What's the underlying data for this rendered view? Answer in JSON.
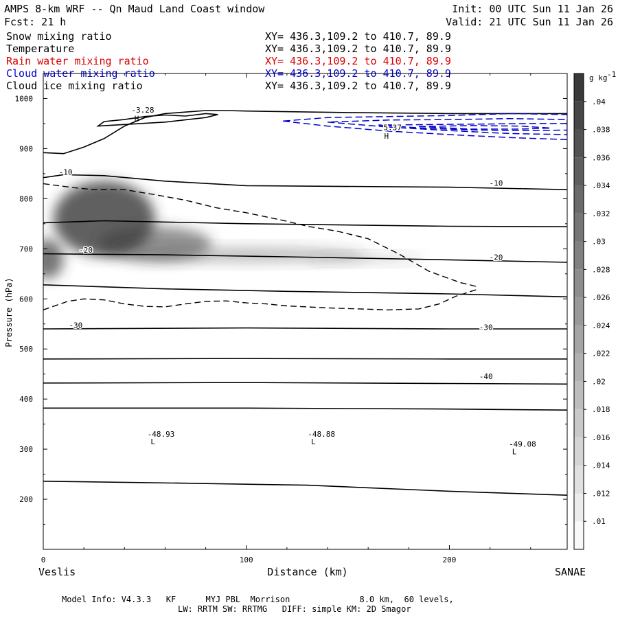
{
  "header": {
    "title": "AMPS 8-km WRF -- Qn Maud Land Coast window",
    "forecast": "Fcst:   21 h",
    "init": "Init: 00 UTC Sun 11 Jan 26",
    "valid": "Valid: 21 UTC Sun 11 Jan 26"
  },
  "fields": [
    {
      "name": "Snow mixing ratio",
      "xy": "XY= 436.3,109.2 to 410.7, 89.9",
      "color": "#000000"
    },
    {
      "name": "Temperature",
      "xy": "XY= 436.3,109.2 to 410.7, 89.9",
      "color": "#000000"
    },
    {
      "name": "Rain water mixing ratio",
      "xy": "XY= 436.3,109.2 to 410.7, 89.9",
      "color": "#dd0000"
    },
    {
      "name": "Cloud water mixing ratio",
      "xy": "XY= 436.3,109.2 to 410.7, 89.9",
      "color": "#0000cc"
    },
    {
      "name": "Cloud ice mixing ratio",
      "xy": "XY= 436.3,109.2 to 410.7, 89.9",
      "color": "#000000"
    }
  ],
  "footer": {
    "line1": "Model Info: V4.3.3   KF      MYJ PBL  Morrison              8.0 km,  60 levels,",
    "line2": "LW: RRTM SW: RRTMG   DIFF: simple KM: 2D Smagor"
  },
  "chart_data": {
    "type": "contour",
    "xlabel": "Distance (km)",
    "ylabel": "Pressure (hPa)",
    "xlim": [
      0,
      258
    ],
    "ylim": [
      1050,
      100
    ],
    "x_ticks": [
      0,
      100,
      200
    ],
    "y_ticks": [
      200,
      300,
      400,
      500,
      600,
      700,
      800,
      900,
      1000
    ],
    "endpoints": {
      "left": "Veslis",
      "right": "SANAE"
    },
    "colorbar": {
      "unit": "g kg",
      "unit_exp": "-1",
      "ticks": [
        ".01",
        ".012",
        ".014",
        ".016",
        ".018",
        ".02",
        ".022",
        ".024",
        ".026",
        ".028",
        ".03",
        ".032",
        ".034",
        ".036",
        ".038",
        ".04"
      ]
    },
    "labels": [
      {
        "text": "L",
        "x": 54,
        "p": 310
      },
      {
        "text": "-48.93",
        "x": 58,
        "p": 325
      },
      {
        "text": "L",
        "x": 133,
        "p": 310
      },
      {
        "text": "-48.88",
        "x": 137,
        "p": 325
      },
      {
        "text": "L",
        "x": 232,
        "p": 290
      },
      {
        "text": "-49.08",
        "x": 236,
        "p": 305
      },
      {
        "text": "-40",
        "x": 218,
        "p": 440
      },
      {
        "text": "-30",
        "x": 16,
        "p": 542
      },
      {
        "text": "-30",
        "x": 218,
        "p": 538
      },
      {
        "text": "-20",
        "x": 21,
        "p": 692
      },
      {
        "text": "-20",
        "x": 223,
        "p": 678
      },
      {
        "text": "-10",
        "x": 11,
        "p": 848
      },
      {
        "text": "-10",
        "x": 223,
        "p": 826
      },
      {
        "text": "H",
        "x": 46,
        "p": 955
      },
      {
        "text": "-3.28",
        "x": 49,
        "p": 972
      },
      {
        "text": "H",
        "x": 169,
        "p": 920
      },
      {
        "text": "5.37",
        "x": 172,
        "p": 937
      }
    ],
    "isotherms": [
      {
        "pts": [
          [
            0,
            236
          ],
          [
            70,
            232
          ],
          [
            130,
            228
          ],
          [
            200,
            216
          ],
          [
            258,
            208
          ]
        ]
      },
      {
        "pts": [
          [
            0,
            382
          ],
          [
            100,
            382
          ],
          [
            200,
            380
          ],
          [
            258,
            378
          ]
        ]
      },
      {
        "pts": [
          [
            0,
            432
          ],
          [
            100,
            433
          ],
          [
            200,
            431
          ],
          [
            258,
            430
          ]
        ]
      },
      {
        "pts": [
          [
            0,
            480
          ],
          [
            100,
            481
          ],
          [
            200,
            480
          ],
          [
            258,
            480
          ]
        ]
      },
      {
        "pts": [
          [
            0,
            540
          ],
          [
            100,
            542
          ],
          [
            200,
            540
          ],
          [
            258,
            540
          ]
        ]
      },
      {
        "pts": [
          [
            0,
            628
          ],
          [
            60,
            620
          ],
          [
            120,
            615
          ],
          [
            200,
            610
          ],
          [
            258,
            604
          ]
        ]
      },
      {
        "pts": [
          [
            0,
            690
          ],
          [
            60,
            688
          ],
          [
            120,
            684
          ],
          [
            200,
            678
          ],
          [
            258,
            673
          ]
        ]
      },
      {
        "pts": [
          [
            0,
            752
          ],
          [
            30,
            756
          ],
          [
            100,
            750
          ],
          [
            200,
            745
          ],
          [
            258,
            744
          ]
        ]
      },
      {
        "pts": [
          [
            0,
            842
          ],
          [
            10,
            848
          ],
          [
            30,
            846
          ],
          [
            60,
            835
          ],
          [
            100,
            826
          ],
          [
            200,
            823
          ],
          [
            258,
            818
          ]
        ]
      },
      {
        "pts": [
          [
            0,
            892
          ],
          [
            10,
            890
          ],
          [
            20,
            903
          ],
          [
            30,
            920
          ],
          [
            40,
            945
          ],
          [
            50,
            962
          ],
          [
            60,
            970
          ],
          [
            70,
            973
          ],
          [
            80,
            976
          ],
          [
            90,
            976
          ],
          [
            100,
            975
          ],
          [
            150,
            972
          ],
          [
            200,
            970
          ],
          [
            258,
            970
          ]
        ]
      }
    ],
    "closed_contour": {
      "pts": [
        [
          27,
          945
        ],
        [
          60,
          953
        ],
        [
          80,
          962
        ],
        [
          86,
          968
        ],
        [
          80,
          970
        ],
        [
          70,
          965
        ],
        [
          60,
          967
        ],
        [
          50,
          964
        ],
        [
          40,
          958
        ],
        [
          30,
          954
        ],
        [
          27,
          945
        ]
      ]
    },
    "snow_outline": {
      "pts": [
        [
          0,
          578
        ],
        [
          12,
          595
        ],
        [
          20,
          600
        ],
        [
          30,
          598
        ],
        [
          40,
          590
        ],
        [
          50,
          585
        ],
        [
          60,
          584
        ],
        [
          70,
          590
        ],
        [
          80,
          595
        ],
        [
          90,
          596
        ],
        [
          100,
          592
        ],
        [
          110,
          590
        ],
        [
          120,
          586
        ],
        [
          140,
          582
        ],
        [
          170,
          578
        ],
        [
          185,
          580
        ],
        [
          195,
          590
        ],
        [
          203,
          605
        ],
        [
          213,
          618
        ],
        [
          213,
          625
        ],
        [
          205,
          633
        ],
        [
          190,
          655
        ],
        [
          175,
          690
        ],
        [
          160,
          720
        ],
        [
          145,
          735
        ],
        [
          130,
          745
        ],
        [
          120,
          755
        ],
        [
          100,
          772
        ],
        [
          85,
          782
        ],
        [
          70,
          797
        ],
        [
          55,
          808
        ],
        [
          40,
          818
        ],
        [
          25,
          818
        ],
        [
          15,
          822
        ],
        [
          0,
          830
        ]
      ]
    },
    "snow_blobs": [
      {
        "cx": 30,
        "cp": 760,
        "rx": 25,
        "rp": 75,
        "a": 0.8
      },
      {
        "cx": 55,
        "cp": 710,
        "rx": 28,
        "rp": 35,
        "a": 0.55
      },
      {
        "cx": 100,
        "cp": 688,
        "rx": 60,
        "rp": 16,
        "a": 0.3
      },
      {
        "cx": 158,
        "cp": 680,
        "rx": 28,
        "rp": 10,
        "a": 0.18
      },
      {
        "cx": 2,
        "cp": 680,
        "rx": 8,
        "rp": 40,
        "a": 0.7
      }
    ],
    "cloud_water": [
      {
        "pts": [
          [
            118,
            955
          ],
          [
            140,
            945
          ],
          [
            170,
            935
          ],
          [
            200,
            928
          ],
          [
            230,
            922
          ],
          [
            258,
            918
          ],
          [
            258,
            968
          ],
          [
            230,
            970
          ],
          [
            200,
            966
          ],
          [
            170,
            964
          ],
          [
            140,
            962
          ],
          [
            118,
            955
          ]
        ]
      },
      {
        "pts": [
          [
            140,
            953
          ],
          [
            170,
            943
          ],
          [
            200,
            936
          ],
          [
            230,
            930
          ],
          [
            258,
            928
          ],
          [
            258,
            958
          ],
          [
            230,
            960
          ],
          [
            200,
            958
          ],
          [
            170,
            957
          ],
          [
            140,
            953
          ]
        ]
      },
      {
        "pts": [
          [
            165,
            947
          ],
          [
            190,
            940
          ],
          [
            215,
            937
          ],
          [
            240,
            936
          ],
          [
            258,
            937
          ],
          [
            258,
            950
          ],
          [
            240,
            950
          ],
          [
            215,
            949
          ],
          [
            190,
            948
          ],
          [
            165,
            947
          ]
        ]
      },
      {
        "pts": [
          [
            185,
            944
          ],
          [
            210,
            939
          ],
          [
            235,
            939
          ],
          [
            250,
            941
          ],
          [
            235,
            945
          ],
          [
            210,
            946
          ],
          [
            185,
            944
          ]
        ]
      }
    ]
  }
}
